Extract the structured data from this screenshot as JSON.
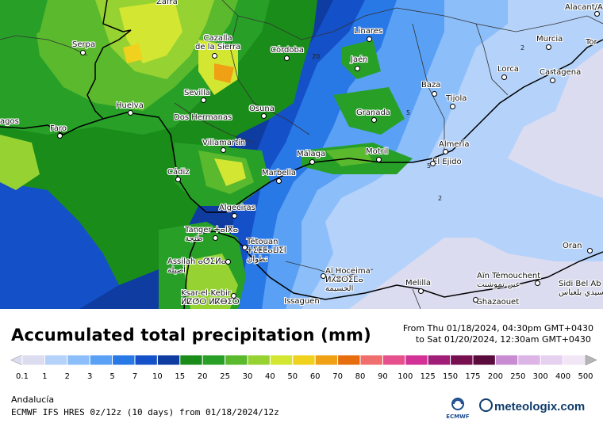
{
  "map": {
    "cities": [
      {
        "name": "Zafra"
      },
      {
        "name": "Alacant/Ali"
      },
      {
        "name": "Serpa"
      },
      {
        "name": "Cazalla\nde la Sierra"
      },
      {
        "name": "Linares"
      },
      {
        "name": "Murcia"
      },
      {
        "name": "Tor"
      },
      {
        "name": "Córdoba"
      },
      {
        "name": "Jaén"
      },
      {
        "name": "Lorca"
      },
      {
        "name": "Cartagena"
      },
      {
        "name": "Sevilla"
      },
      {
        "name": "Baza"
      },
      {
        "name": "Huelva"
      },
      {
        "name": "Osuna"
      },
      {
        "name": "Tijola"
      },
      {
        "name": "Dos Hermanas"
      },
      {
        "name": "Granada"
      },
      {
        "name": "agos"
      },
      {
        "name": "Faro"
      },
      {
        "name": "Villamartín"
      },
      {
        "name": "Almería"
      },
      {
        "name": "Málaga"
      },
      {
        "name": "Motril"
      },
      {
        "name": "El Ejido"
      },
      {
        "name": "Cádiz"
      },
      {
        "name": "Marbella"
      },
      {
        "name": "Algeciras"
      },
      {
        "name": "Tanger ⵜⴰⵏⴳⴰ\nطنجة"
      },
      {
        "name": "Oran"
      },
      {
        "name": "Tétouan\nⵜⵉⵟⵟⴰⵡⵉⵏ\nتطوان"
      },
      {
        "name": "Assilah ⴰⵚⵉⵍⴰ\nأصيلة"
      },
      {
        "name": "Al Hoceima\nⵍⵃⵓⵙⵉⵎⴰ\nالحسيمة"
      },
      {
        "name": "Aïn Témouchent\nعين تموشنت"
      },
      {
        "name": "Sidi Bel Ab\nسيدي بلعباس"
      },
      {
        "name": "Melilla"
      },
      {
        "name": "Ksar-el-Kebir\nⵍⵇⵚⵔ ⵍⴽⴱⵉⵔ"
      },
      {
        "name": "Issaguen"
      },
      {
        "name": "Ghazaouet"
      }
    ],
    "contour_labels": [
      "20",
      "5",
      "5",
      "2",
      "2"
    ]
  },
  "title": "Accumulated total precipitation (mm)",
  "period": {
    "from": "From Thu 01/18/2024, 04:30pm GMT+0430",
    "to": "to Sat 01/20/2024, 12:30am GMT+0430"
  },
  "legend": {
    "unit": "mm",
    "ticks": [
      "0.1",
      "1",
      "2",
      "3",
      "5",
      "7",
      "10",
      "15",
      "20",
      "25",
      "30",
      "40",
      "50",
      "60",
      "70",
      "80",
      "90",
      "100",
      "125",
      "150",
      "175",
      "200",
      "250",
      "300",
      "400",
      "500"
    ],
    "colors": [
      "#dcdcf0",
      "#b4d2fa",
      "#8cbefa",
      "#5aa0f5",
      "#2878e6",
      "#1450c8",
      "#0f3ca0",
      "#1a8c1a",
      "#28a028",
      "#5ab92d",
      "#96d232",
      "#d2e632",
      "#f0d21e",
      "#f0a014",
      "#e66e0f",
      "#f06e6e",
      "#e6508c",
      "#d23296",
      "#a01e78",
      "#780f50",
      "#5a0a3c",
      "#c88cd2",
      "#dcb4e6",
      "#e6d2f0",
      "#f0e6f5",
      "#b4b4b4"
    ]
  },
  "region": "Andalucía",
  "model": "ECMWF IFS HRES 0z/12z (10 days) from 01/18/2024/12z",
  "logo": {
    "ecmwf_label": "ECMWF",
    "brand": "meteologix.com"
  }
}
